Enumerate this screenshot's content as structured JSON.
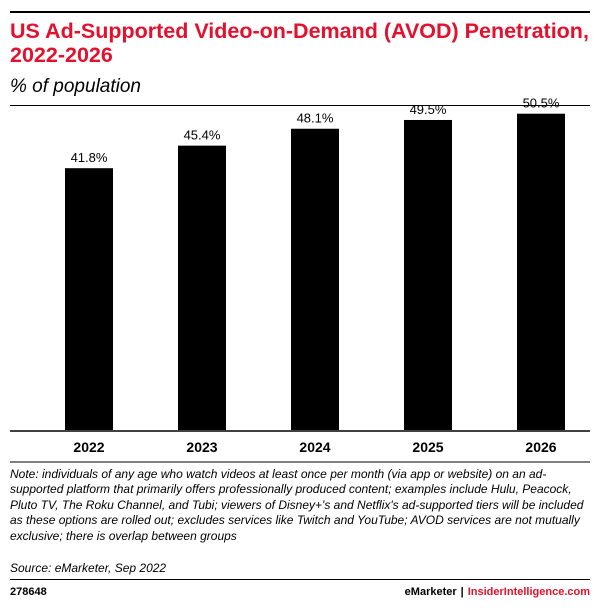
{
  "header": {
    "title": "US Ad-Supported Video-on-Demand (AVOD) Penetration, 2022-2026",
    "subtitle": "% of population"
  },
  "chart_data": {
    "type": "bar",
    "categories": [
      "2022",
      "2023",
      "2024",
      "2025",
      "2026"
    ],
    "values": [
      41.8,
      45.4,
      48.1,
      49.5,
      50.5
    ],
    "value_labels": [
      "41.8%",
      "45.4%",
      "48.1%",
      "49.5%",
      "50.5%"
    ],
    "ylim": [
      0,
      57
    ],
    "bar_color": "#000000",
    "grid": false
  },
  "footer": {
    "note": "Note: individuals of any age who watch videos at least once per month (via app or website) on an ad-supported platform that primarily offers professionally produced content; examples include Hulu, Peacock, Pluto TV, The Roku Channel, and Tubi; viewers of Disney+'s and Netflix's ad-supported tiers will be included as these options are rolled out; excludes services like Twitch and YouTube; AVOD services are not mutually exclusive; there is overlap between groups",
    "source": "Source: eMarketer, Sep 2022",
    "chart_id": "278648",
    "brand_left": "eMarketer",
    "brand_sep": "|",
    "brand_right": "InsiderIntelligence.com",
    "accent_color": "#e4112e"
  }
}
